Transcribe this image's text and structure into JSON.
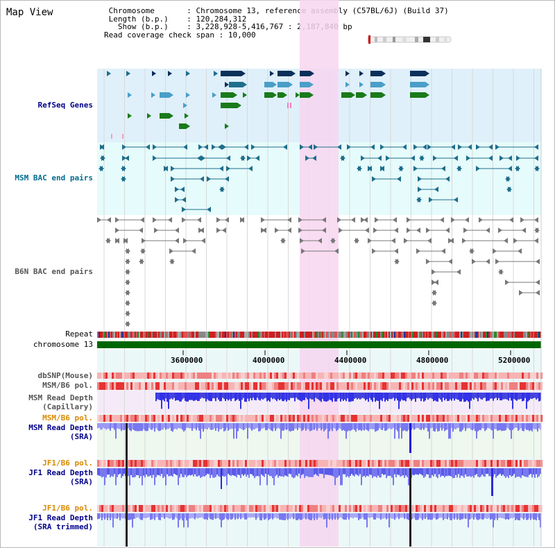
{
  "page": {
    "title": "Map View"
  },
  "header": {
    "rows": [
      {
        "key": "Chromosome       ",
        "value": "Chromosome 13, reference assembly (C57BL/6J) (Build 37)"
      },
      {
        "key": "Length (b.p.)    ",
        "value": "120,284,312"
      },
      {
        "key": "  Show (b.p.)    ",
        "value": "3,228,928-5,416,767 : 2,187,840 bp"
      },
      {
        "key": "Read coverage check span",
        "value": "10,000"
      }
    ]
  },
  "tracks": {
    "refseq": "RefSeq Genes",
    "msm_bac": "MSM BAC end pairs",
    "b6n_bac": "B6N BAC end pairs",
    "repeat": "Repeat",
    "chromosome": "chromosome 13",
    "dbsnp": "dbSNP(Mouse)",
    "msm_b6_pol_1": "MSM/B6 pol.",
    "msm_read_depth_cap_1": "MSM Read Depth",
    "msm_read_depth_cap_2": "(Capillary)",
    "msm_b6_pol_2": "MSM/B6 pol.",
    "msm_read_depth_sra_1": "MSM Read Depth",
    "msm_read_depth_sra_2": "(SRA)",
    "jf1_b6_pol_1": "JF1/B6 pol.",
    "jf1_read_depth_sra_1": "JF1 Read Depth",
    "jf1_read_depth_sra_2": "(SRA)",
    "jf1_b6_pol_2": "JF1/B6 pol.",
    "jf1_read_depth_trim_1": "JF1 Read Depth",
    "jf1_read_depth_trim_2": "(SRA trimmed)"
  },
  "axis": {
    "ticks": [
      "3600000",
      "4000000",
      "4400000",
      "4800000",
      "5200000"
    ]
  },
  "colors": {
    "refseq_bg": "#dff0fa",
    "bac_bg": "#e6fbfb",
    "highlight": "#f7d6f0",
    "chromosome_bar": "#006600",
    "depth_blue": "#3232e6",
    "depth_light": "#7878f0",
    "pol_red": "#e63232",
    "pol_light": "#f7b4b4",
    "msm_teal": "#1e6e8c",
    "gray": "#777777"
  },
  "icons": {
    "chromosome_ideogram": "chromosome-ideogram-icon"
  }
}
